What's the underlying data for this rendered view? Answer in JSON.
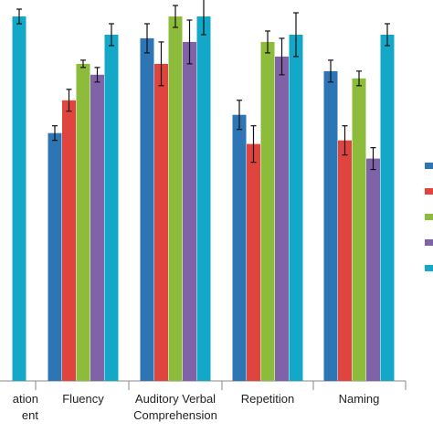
{
  "chart_data": {
    "type": "bar",
    "title": "",
    "xlabel": "",
    "ylabel": "",
    "categories": [
      [
        "ation",
        "ent"
      ],
      [
        "Fluency"
      ],
      [
        "Auditory Verbal",
        "Comprehension"
      ],
      [
        "Repetition"
      ],
      [
        "Naming"
      ]
    ],
    "ylim": [
      0,
      100
    ],
    "grid": false,
    "legend_position": "right",
    "series": [
      {
        "color": "#2E75B6",
        "values": [
          null,
          68,
          94,
          73,
          85
        ],
        "errors": [
          null,
          2,
          4,
          4,
          3
        ]
      },
      {
        "color": "#E0443E",
        "values": [
          null,
          77,
          87,
          65,
          66
        ],
        "errors": [
          null,
          3,
          6,
          5,
          4
        ]
      },
      {
        "color": "#8DBB3C",
        "values": [
          null,
          87,
          100,
          93,
          83
        ],
        "errors": [
          null,
          1,
          3,
          3,
          2
        ]
      },
      {
        "color": "#8062A8",
        "values": [
          null,
          84,
          93,
          89,
          61
        ],
        "errors": [
          null,
          2,
          6,
          5,
          3
        ]
      },
      {
        "color": "#14A8C8",
        "values": [
          100,
          95,
          100,
          95,
          95
        ],
        "errors": [
          2,
          3,
          5,
          6,
          3
        ]
      }
    ]
  }
}
